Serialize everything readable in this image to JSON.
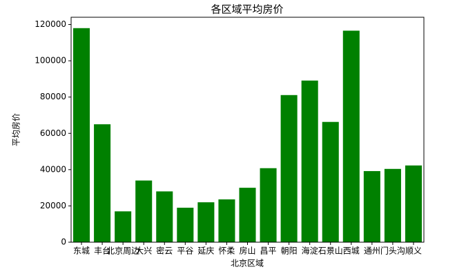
{
  "chart_data": {
    "type": "bar",
    "title": "各区域平均房价",
    "x_label": "北京区域",
    "y_label": "平均房价",
    "categories": [
      "东城",
      "丰台",
      "北京周边",
      "大兴",
      "密云",
      "平谷",
      "延庆",
      "怀柔",
      "房山",
      "昌平",
      "朝阳",
      "海淀",
      "石景山",
      "西城",
      "通州",
      "门头沟",
      "顺义"
    ],
    "values": [
      118000,
      65000,
      17000,
      34000,
      28000,
      19000,
      22000,
      23600,
      30000,
      40800,
      81100,
      89100,
      66300,
      116600,
      39200,
      40400,
      42300
    ],
    "color": "#008000",
    "ylim": [
      0,
      124000
    ],
    "yticks": [
      0,
      20000,
      40000,
      60000,
      80000,
      100000,
      120000
    ],
    "grid": false
  }
}
